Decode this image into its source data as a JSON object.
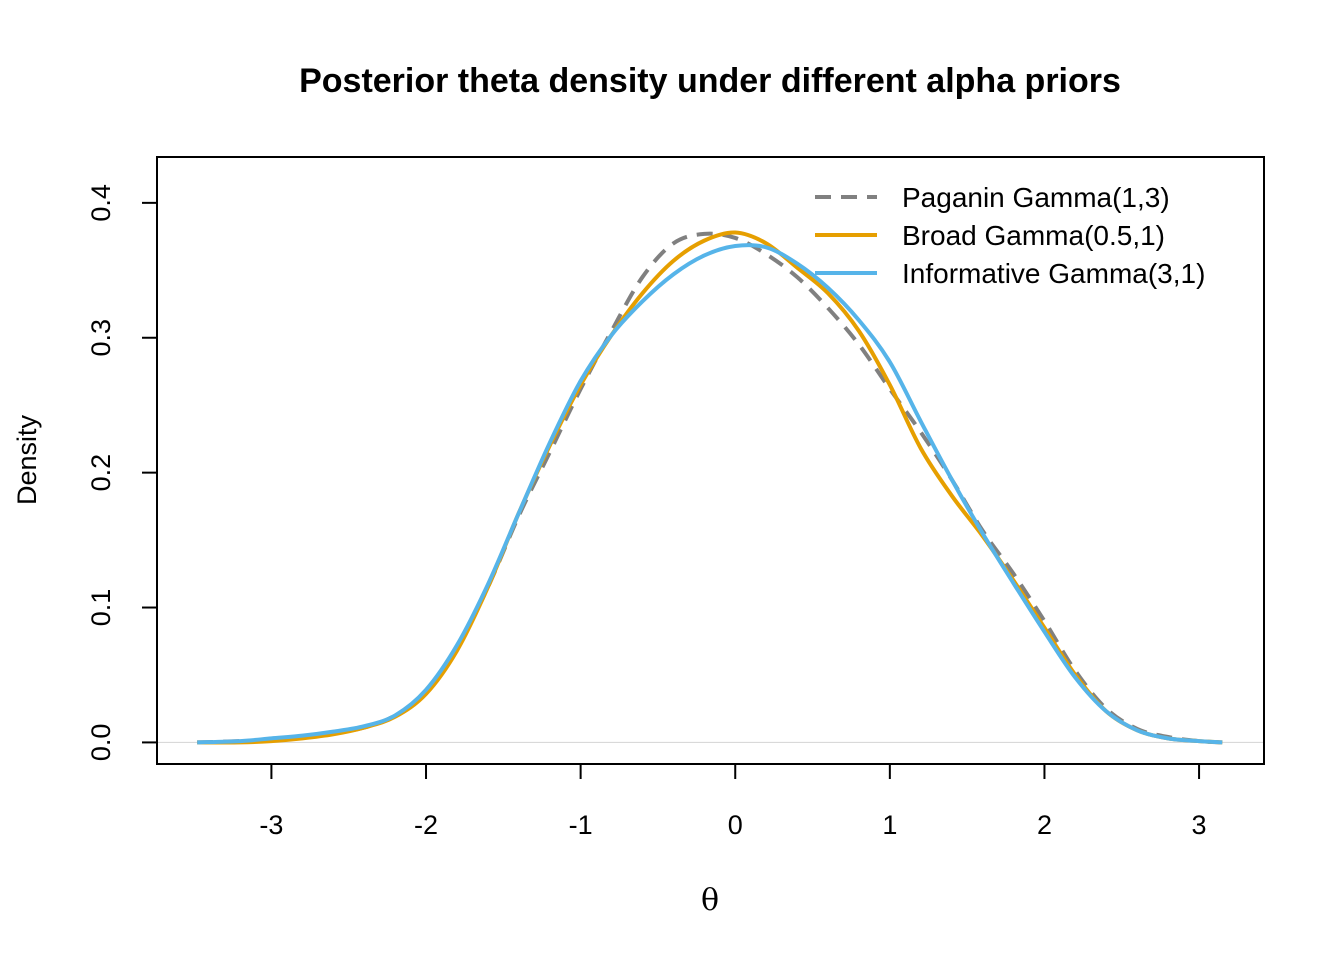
{
  "chart_data": {
    "type": "line",
    "title": "Posterior theta density under different alpha priors",
    "xlabel": "θ",
    "ylabel": "Density",
    "xlim": [
      -3.74,
      3.42
    ],
    "ylim": [
      -0.016,
      0.434
    ],
    "xticks": [
      -3,
      -2,
      -1,
      0,
      1,
      2,
      3
    ],
    "yticks": [
      0.0,
      0.1,
      0.2,
      0.3,
      0.4
    ],
    "ytick_labels": [
      "0.0",
      "0.1",
      "0.2",
      "0.3",
      "0.4"
    ],
    "baseline": 0,
    "grid": false,
    "legend_position": "top-right",
    "series": [
      {
        "name": "Paganin Gamma(1,3)",
        "color": "#808080",
        "dash": "dashed",
        "x": [
          -3.48,
          -3.2,
          -3.0,
          -2.8,
          -2.6,
          -2.4,
          -2.2,
          -2.0,
          -1.8,
          -1.6,
          -1.4,
          -1.2,
          -1.0,
          -0.8,
          -0.6,
          -0.4,
          -0.2,
          0.0,
          0.2,
          0.4,
          0.6,
          0.8,
          1.0,
          1.2,
          1.4,
          1.6,
          1.8,
          2.0,
          2.2,
          2.4,
          2.6,
          2.8,
          3.0,
          3.15
        ],
        "y": [
          0.0,
          0.001,
          0.002,
          0.004,
          0.007,
          0.011,
          0.02,
          0.038,
          0.07,
          0.115,
          0.168,
          0.215,
          0.262,
          0.305,
          0.345,
          0.37,
          0.377,
          0.374,
          0.362,
          0.345,
          0.322,
          0.295,
          0.262,
          0.23,
          0.195,
          0.157,
          0.125,
          0.09,
          0.053,
          0.025,
          0.01,
          0.004,
          0.001,
          0.0
        ]
      },
      {
        "name": "Broad Gamma(0.5,1)",
        "color": "#E69F00",
        "dash": "solid",
        "x": [
          -3.48,
          -3.2,
          -3.0,
          -2.8,
          -2.6,
          -2.4,
          -2.2,
          -2.0,
          -1.8,
          -1.6,
          -1.4,
          -1.2,
          -1.0,
          -0.8,
          -0.6,
          -0.4,
          -0.2,
          0.0,
          0.2,
          0.4,
          0.6,
          0.8,
          1.0,
          1.2,
          1.4,
          1.6,
          1.8,
          2.0,
          2.2,
          2.4,
          2.6,
          2.8,
          3.0,
          3.15
        ],
        "y": [
          0.0,
          0.0,
          0.001,
          0.003,
          0.006,
          0.011,
          0.019,
          0.036,
          0.068,
          0.115,
          0.17,
          0.22,
          0.265,
          0.302,
          0.333,
          0.357,
          0.372,
          0.378,
          0.37,
          0.352,
          0.333,
          0.305,
          0.265,
          0.218,
          0.183,
          0.153,
          0.12,
          0.085,
          0.05,
          0.023,
          0.009,
          0.003,
          0.001,
          0.0
        ]
      },
      {
        "name": "Informative Gamma(3,1)",
        "color": "#56B4E9",
        "dash": "solid",
        "x": [
          -3.48,
          -3.2,
          -3.0,
          -2.8,
          -2.6,
          -2.4,
          -2.2,
          -2.0,
          -1.8,
          -1.6,
          -1.4,
          -1.2,
          -1.0,
          -0.8,
          -0.6,
          -0.4,
          -0.2,
          0.0,
          0.2,
          0.4,
          0.6,
          0.8,
          1.0,
          1.2,
          1.4,
          1.6,
          1.8,
          2.0,
          2.2,
          2.4,
          2.6,
          2.8,
          3.0,
          3.15
        ],
        "y": [
          0.0,
          0.001,
          0.003,
          0.005,
          0.008,
          0.012,
          0.02,
          0.039,
          0.072,
          0.117,
          0.17,
          0.222,
          0.268,
          0.302,
          0.327,
          0.347,
          0.361,
          0.368,
          0.367,
          0.355,
          0.337,
          0.313,
          0.282,
          0.238,
          0.195,
          0.155,
          0.118,
          0.082,
          0.048,
          0.023,
          0.009,
          0.003,
          0.001,
          0.0
        ]
      }
    ]
  }
}
